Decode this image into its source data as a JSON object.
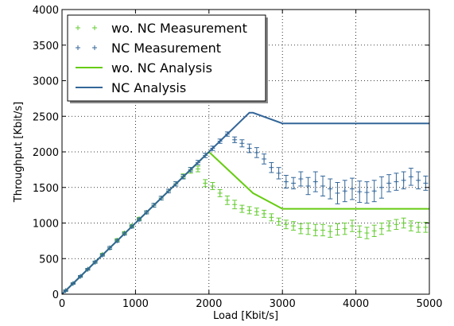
{
  "chart_data": {
    "type": "line",
    "title": "",
    "xlabel": "Load [Kbit/s]",
    "ylabel": "Throughput [Kbit/s]",
    "xlim": [
      0,
      5000
    ],
    "ylim": [
      0,
      4000
    ],
    "xticks": [
      0,
      1000,
      2000,
      3000,
      4000,
      5000
    ],
    "yticks": [
      0,
      500,
      1000,
      1500,
      2000,
      2500,
      3000,
      3500,
      4000
    ],
    "grid": true,
    "legend_position": "top-left",
    "series": [
      {
        "name": "wo. NC Measurement",
        "kind": "errorbar",
        "color": "#66cc33",
        "points": [
          {
            "x": 50,
            "y": 50,
            "err": 10
          },
          {
            "x": 150,
            "y": 150,
            "err": 10
          },
          {
            "x": 250,
            "y": 250,
            "err": 12
          },
          {
            "x": 350,
            "y": 350,
            "err": 12
          },
          {
            "x": 450,
            "y": 450,
            "err": 15
          },
          {
            "x": 550,
            "y": 560,
            "err": 15
          },
          {
            "x": 650,
            "y": 650,
            "err": 20
          },
          {
            "x": 750,
            "y": 760,
            "err": 20
          },
          {
            "x": 850,
            "y": 860,
            "err": 20
          },
          {
            "x": 950,
            "y": 960,
            "err": 20
          },
          {
            "x": 1050,
            "y": 1060,
            "err": 20
          },
          {
            "x": 1150,
            "y": 1150,
            "err": 20
          },
          {
            "x": 1250,
            "y": 1250,
            "err": 25
          },
          {
            "x": 1350,
            "y": 1350,
            "err": 25
          },
          {
            "x": 1450,
            "y": 1450,
            "err": 25
          },
          {
            "x": 1550,
            "y": 1550,
            "err": 30
          },
          {
            "x": 1650,
            "y": 1660,
            "err": 30
          },
          {
            "x": 1750,
            "y": 1740,
            "err": 40
          },
          {
            "x": 1850,
            "y": 1760,
            "err": 40
          },
          {
            "x": 1950,
            "y": 1560,
            "err": 50
          },
          {
            "x": 2050,
            "y": 1520,
            "err": 50
          },
          {
            "x": 2150,
            "y": 1420,
            "err": 50
          },
          {
            "x": 2250,
            "y": 1320,
            "err": 60
          },
          {
            "x": 2350,
            "y": 1260,
            "err": 60
          },
          {
            "x": 2450,
            "y": 1200,
            "err": 50
          },
          {
            "x": 2550,
            "y": 1180,
            "err": 50
          },
          {
            "x": 2650,
            "y": 1160,
            "err": 50
          },
          {
            "x": 2750,
            "y": 1130,
            "err": 50
          },
          {
            "x": 2850,
            "y": 1080,
            "err": 50
          },
          {
            "x": 2950,
            "y": 1020,
            "err": 50
          },
          {
            "x": 3050,
            "y": 980,
            "err": 60
          },
          {
            "x": 3150,
            "y": 960,
            "err": 60
          },
          {
            "x": 3250,
            "y": 920,
            "err": 70
          },
          {
            "x": 3350,
            "y": 920,
            "err": 80
          },
          {
            "x": 3450,
            "y": 900,
            "err": 80
          },
          {
            "x": 3550,
            "y": 900,
            "err": 80
          },
          {
            "x": 3650,
            "y": 880,
            "err": 80
          },
          {
            "x": 3750,
            "y": 910,
            "err": 80
          },
          {
            "x": 3850,
            "y": 920,
            "err": 80
          },
          {
            "x": 3950,
            "y": 960,
            "err": 80
          },
          {
            "x": 4050,
            "y": 880,
            "err": 80
          },
          {
            "x": 4150,
            "y": 860,
            "err": 80
          },
          {
            "x": 4250,
            "y": 890,
            "err": 80
          },
          {
            "x": 4350,
            "y": 920,
            "err": 80
          },
          {
            "x": 4450,
            "y": 960,
            "err": 70
          },
          {
            "x": 4550,
            "y": 980,
            "err": 70
          },
          {
            "x": 4650,
            "y": 1000,
            "err": 70
          },
          {
            "x": 4750,
            "y": 960,
            "err": 70
          },
          {
            "x": 4850,
            "y": 940,
            "err": 70
          },
          {
            "x": 4950,
            "y": 940,
            "err": 70
          }
        ]
      },
      {
        "name": "NC Measurement",
        "kind": "errorbar",
        "color": "#336699",
        "points": [
          {
            "x": 50,
            "y": 50,
            "err": 10
          },
          {
            "x": 150,
            "y": 150,
            "err": 10
          },
          {
            "x": 250,
            "y": 250,
            "err": 12
          },
          {
            "x": 350,
            "y": 350,
            "err": 12
          },
          {
            "x": 450,
            "y": 450,
            "err": 15
          },
          {
            "x": 550,
            "y": 550,
            "err": 15
          },
          {
            "x": 650,
            "y": 650,
            "err": 20
          },
          {
            "x": 750,
            "y": 750,
            "err": 20
          },
          {
            "x": 850,
            "y": 850,
            "err": 20
          },
          {
            "x": 950,
            "y": 950,
            "err": 20
          },
          {
            "x": 1050,
            "y": 1050,
            "err": 20
          },
          {
            "x": 1150,
            "y": 1150,
            "err": 20
          },
          {
            "x": 1250,
            "y": 1250,
            "err": 25
          },
          {
            "x": 1350,
            "y": 1350,
            "err": 25
          },
          {
            "x": 1450,
            "y": 1450,
            "err": 25
          },
          {
            "x": 1550,
            "y": 1550,
            "err": 30
          },
          {
            "x": 1650,
            "y": 1650,
            "err": 30
          },
          {
            "x": 1750,
            "y": 1750,
            "err": 30
          },
          {
            "x": 1850,
            "y": 1850,
            "err": 30
          },
          {
            "x": 1950,
            "y": 1950,
            "err": 30
          },
          {
            "x": 2050,
            "y": 2050,
            "err": 30
          },
          {
            "x": 2150,
            "y": 2150,
            "err": 30
          },
          {
            "x": 2250,
            "y": 2250,
            "err": 30
          },
          {
            "x": 2350,
            "y": 2170,
            "err": 40
          },
          {
            "x": 2450,
            "y": 2120,
            "err": 50
          },
          {
            "x": 2550,
            "y": 2050,
            "err": 60
          },
          {
            "x": 2650,
            "y": 1990,
            "err": 70
          },
          {
            "x": 2750,
            "y": 1900,
            "err": 70
          },
          {
            "x": 2850,
            "y": 1780,
            "err": 70
          },
          {
            "x": 2950,
            "y": 1700,
            "err": 80
          },
          {
            "x": 3050,
            "y": 1580,
            "err": 90
          },
          {
            "x": 3150,
            "y": 1560,
            "err": 80
          },
          {
            "x": 3250,
            "y": 1620,
            "err": 100
          },
          {
            "x": 3350,
            "y": 1520,
            "err": 120
          },
          {
            "x": 3450,
            "y": 1580,
            "err": 140
          },
          {
            "x": 3550,
            "y": 1520,
            "err": 140
          },
          {
            "x": 3650,
            "y": 1480,
            "err": 140
          },
          {
            "x": 3750,
            "y": 1420,
            "err": 150
          },
          {
            "x": 3850,
            "y": 1450,
            "err": 150
          },
          {
            "x": 3950,
            "y": 1480,
            "err": 150
          },
          {
            "x": 4050,
            "y": 1440,
            "err": 150
          },
          {
            "x": 4150,
            "y": 1430,
            "err": 150
          },
          {
            "x": 4250,
            "y": 1450,
            "err": 150
          },
          {
            "x": 4350,
            "y": 1500,
            "err": 150
          },
          {
            "x": 4450,
            "y": 1560,
            "err": 120
          },
          {
            "x": 4550,
            "y": 1580,
            "err": 120
          },
          {
            "x": 4650,
            "y": 1600,
            "err": 120
          },
          {
            "x": 4750,
            "y": 1650,
            "err": 120
          },
          {
            "x": 4850,
            "y": 1600,
            "err": 120
          },
          {
            "x": 4950,
            "y": 1560,
            "err": 100
          }
        ]
      },
      {
        "name": "wo. NC Analysis",
        "kind": "line",
        "color": "#66cc11",
        "x": [
          0,
          2000,
          2600,
          3000,
          5000
        ],
        "y": [
          0,
          2000,
          1420,
          1200,
          1200
        ]
      },
      {
        "name": "NC Analysis",
        "kind": "line",
        "color": "#336699",
        "x": [
          0,
          2550,
          2600,
          3000,
          5000
        ],
        "y": [
          0,
          2550,
          2550,
          2400,
          2400
        ]
      }
    ]
  }
}
